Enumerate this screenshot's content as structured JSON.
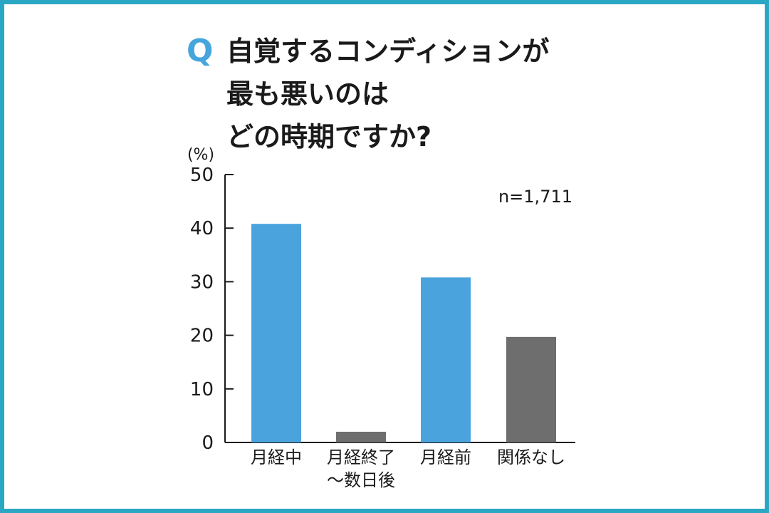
{
  "title": {
    "q_mark": "Q",
    "lines": [
      "自覚するコンディションが",
      "最も悪いのは",
      "どの時期ですか?"
    ]
  },
  "colors": {
    "frame": "#2aa7c3",
    "accent_blue": "#4aa3dc",
    "gray": "#6e6e6e"
  },
  "chart_data": {
    "type": "bar",
    "unit_label": "(%)",
    "note": "n=1,711",
    "categories": [
      "月経中",
      "月経終了～数日後",
      "月経前",
      "関係なし"
    ],
    "category_lines": [
      [
        "月経中"
      ],
      [
        "月経終了",
        "～数日後"
      ],
      [
        "月経前"
      ],
      [
        "関係なし"
      ]
    ],
    "values": [
      40.8,
      2.0,
      30.8,
      19.7
    ],
    "bar_colors": [
      "#4aa3dc",
      "#6e6e6e",
      "#4aa3dc",
      "#6e6e6e"
    ],
    "ylim": [
      0,
      50
    ],
    "yticks": [
      0,
      10,
      20,
      30,
      40,
      50
    ],
    "grid": false,
    "xlabel": "",
    "ylabel": ""
  }
}
